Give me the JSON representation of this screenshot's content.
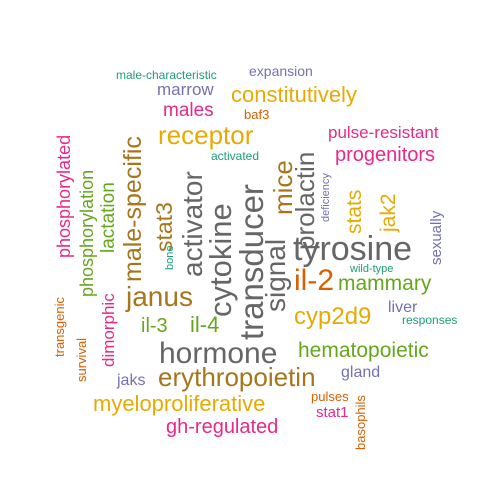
{
  "word_cloud": {
    "colors": {
      "teal": "#1b9e77",
      "orange": "#d95f02",
      "purple": "#7570b3",
      "pink": "#e7298a",
      "green": "#66a61e",
      "gold": "#e6ab02",
      "brown": "#a6761d",
      "gray": "#666666"
    },
    "words": {
      "male_characteristic": "male-characteristic",
      "expansion": "expansion",
      "marrow": "marrow",
      "constitutively": "constitutively",
      "males": "males",
      "baf3": "baf3",
      "receptor": "receptor",
      "pulse_resistant": "pulse-resistant",
      "activated": "activated",
      "progenitors": "progenitors",
      "phosphorylated": "phosphorylated",
      "phosphorylation": "phosphorylation",
      "lactation": "lactation",
      "male_specific": "male-specific",
      "stat3": "stat3",
      "activator": "activator",
      "cytokine": "cytokine",
      "transducer": "transducer",
      "signal": "signal",
      "mice": "mice",
      "prolactin": "prolactin",
      "bone": "bone",
      "deficiency": "deficiency",
      "stats": "stats",
      "jak2": "jak2",
      "sexually": "sexually",
      "tyrosine": "tyrosine",
      "wild_type": "wild-type",
      "il_2": "il-2",
      "mammary": "mammary",
      "janus": "janus",
      "liver": "liver",
      "cyp2d9": "cyp2d9",
      "responses": "responses",
      "il_3": "il-3",
      "il_4": "il-4",
      "transgenic": "transgenic",
      "survival": "survival",
      "dimorphic": "dimorphic",
      "hormone": "hormone",
      "hematopoietic": "hematopoietic",
      "erythropoietin": "erythropoietin",
      "gland": "gland",
      "jaks": "jaks",
      "myeloproliferative": "myeloproliferative",
      "pulses": "pulses",
      "stat1": "stat1",
      "basophils": "basophils",
      "gh_regulated": "gh-regulated"
    }
  }
}
